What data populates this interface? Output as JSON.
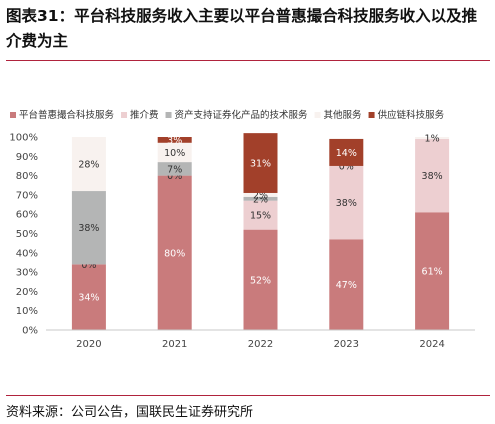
{
  "figure": {
    "number": "图表31：",
    "title": "平台科技服务收入主要以平台普惠撮合科技服务收入以及推介费为主",
    "source": "资料来源：公司公告，国联民生证券研究所"
  },
  "chart_data": {
    "type": "bar",
    "stacked": true,
    "percent_stacked": true,
    "categories": [
      "2020",
      "2021",
      "2022",
      "2023",
      "2024"
    ],
    "ylim": [
      0,
      100
    ],
    "yticks": [
      "0%",
      "10%",
      "20%",
      "30%",
      "40%",
      "50%",
      "60%",
      "70%",
      "80%",
      "90%",
      "100%"
    ],
    "legend_position": "top",
    "grid": false,
    "series": [
      {
        "name": "平台普惠撮合科技服务",
        "color": "#c97b7c",
        "text_color": "#ffffff",
        "values": [
          34,
          80,
          52,
          47,
          61
        ],
        "labels": [
          "34%",
          "80%",
          "52%",
          "47%",
          "61%"
        ]
      },
      {
        "name": "推介费",
        "color": "#edcfd1",
        "text_color": "#333333",
        "values": [
          0,
          0,
          15,
          38,
          38
        ],
        "labels": [
          "0%",
          "0%",
          "15%",
          "38%",
          "38%"
        ]
      },
      {
        "name": "资产支持证券化产品的技术服务",
        "color": "#b4b5b5",
        "text_color": "#333333",
        "values": [
          38,
          7,
          2,
          0,
          0
        ],
        "labels": [
          "38%",
          "7%",
          "2%",
          "",
          ""
        ]
      },
      {
        "name": "其他服务",
        "color": "#f8f2ef",
        "text_color": "#333333",
        "values": [
          28,
          10,
          2,
          0,
          1
        ],
        "labels": [
          "28%",
          "10%",
          "2%",
          "0%",
          "1%"
        ]
      },
      {
        "name": "供应链科技服务",
        "color": "#a2402a",
        "text_color": "#ffffff",
        "values": [
          0,
          3,
          31,
          14,
          0
        ],
        "labels": [
          "",
          "3%",
          "31%",
          "14%",
          ""
        ]
      }
    ]
  }
}
